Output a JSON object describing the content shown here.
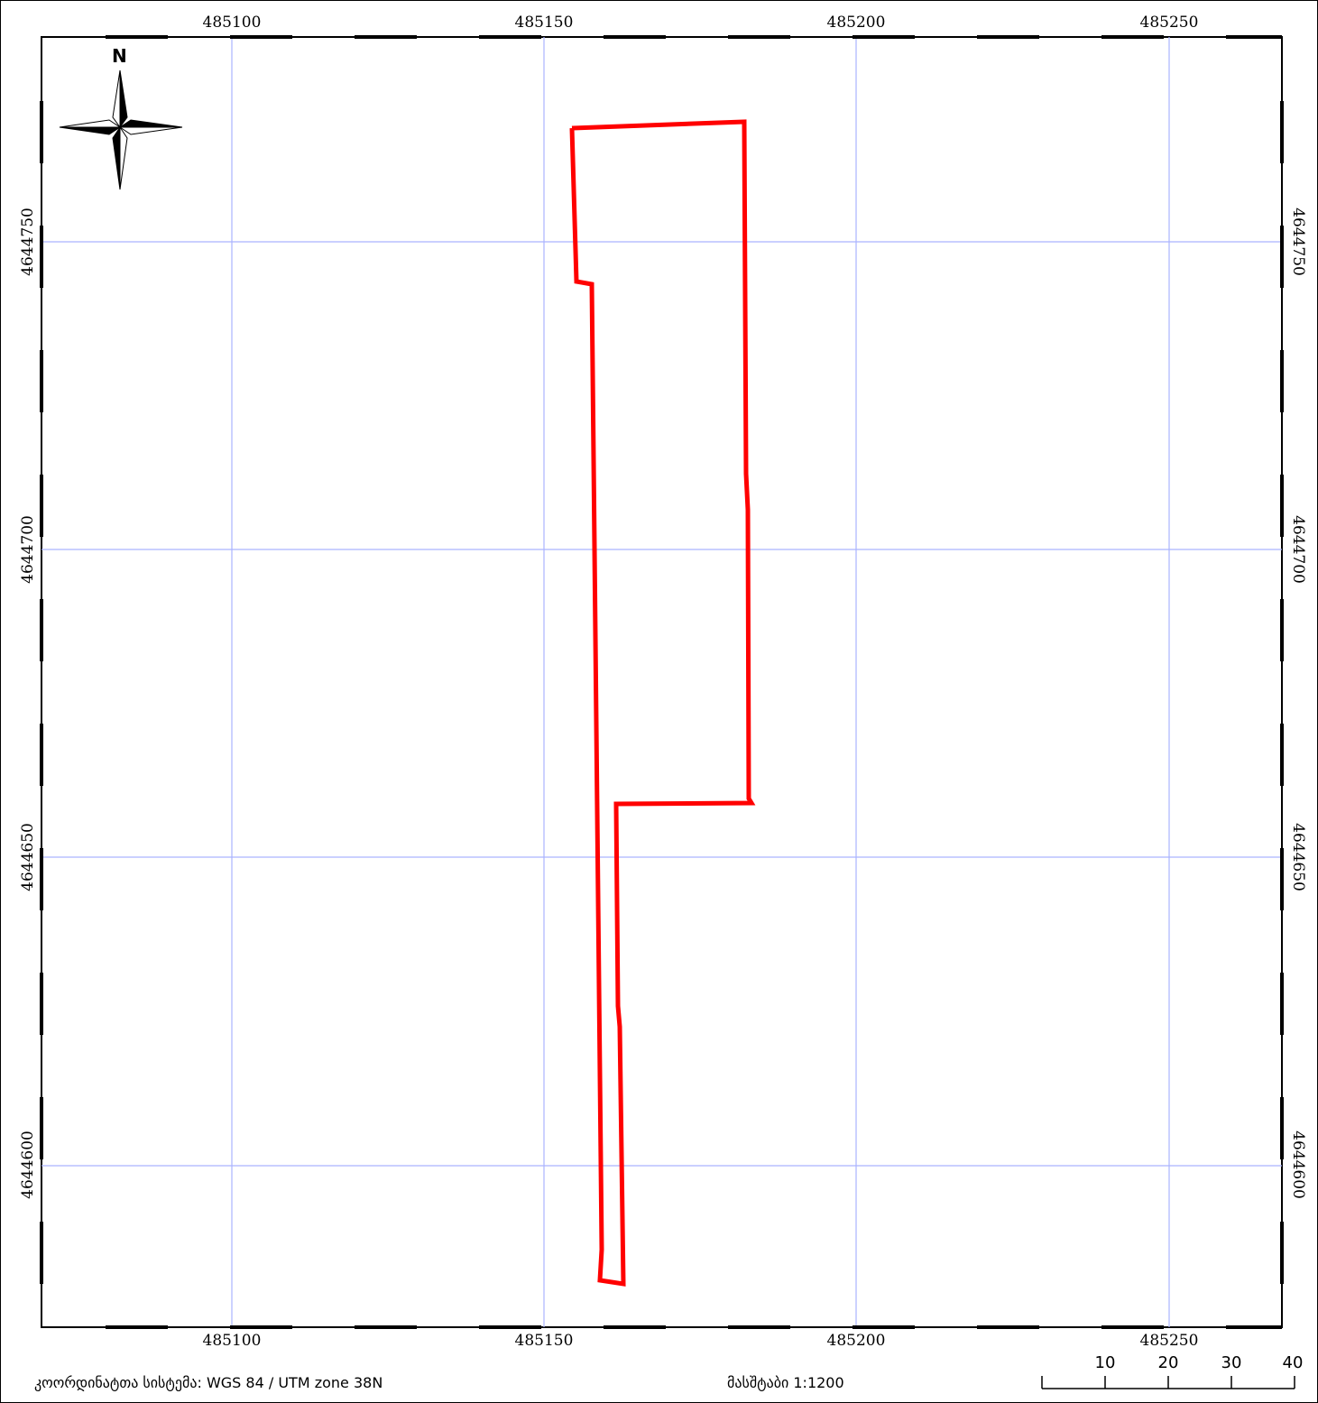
{
  "map": {
    "x_ticks": [
      "485100",
      "485150",
      "485200",
      "485250"
    ],
    "y_ticks": [
      "4644750",
      "4644700",
      "4644650",
      "4644600"
    ],
    "grid_color": "#aab4ff",
    "parcel_color": "#ff0000",
    "north_label": "N"
  },
  "footer": {
    "crs_text": "კოორდინატთა სისტემა: WGS 84 / UTM zone 38N",
    "scale_text": "მასშტაბი 1:1200",
    "scalebar_labels": [
      "10",
      "20",
      "30",
      "40"
    ]
  }
}
